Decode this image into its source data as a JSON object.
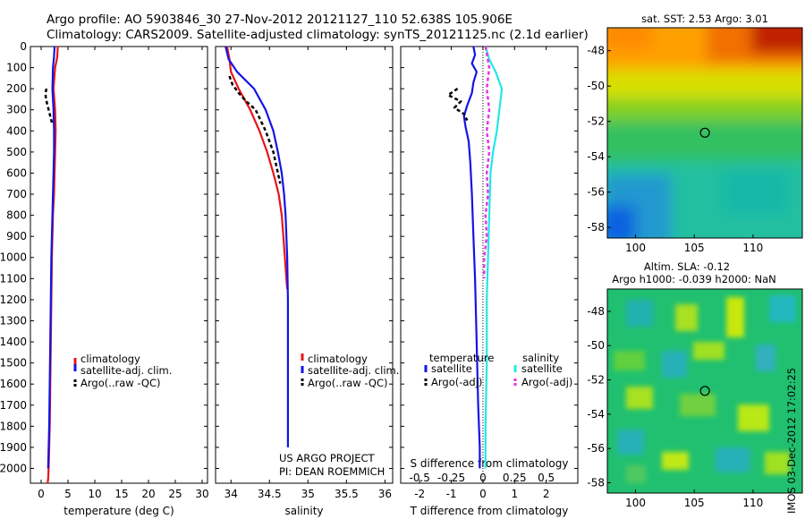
{
  "header": {
    "title_line1": "Argo profile: AO 5903846_30 27-Nov-2012 20121127_110 52.638S 105.906E",
    "title_line2": "Climatology: CARS2009. Satellite-adjusted climatology: synTS_20121125.nc (2.1d earlier)"
  },
  "colors": {
    "climatology": "#e8141a",
    "satellite": "#1414e6",
    "argo": "#000000",
    "satellite_salinity": "#20e8e8",
    "argo_salinity": "#e830e8"
  },
  "chart_data": [
    {
      "type": "line",
      "id": "temperature",
      "xlabel": "temperature (deg C)",
      "ylabel": "",
      "xlim": [
        -2,
        31
      ],
      "ylim": [
        2070,
        0
      ],
      "xticks": [
        "0",
        "5",
        "10",
        "15",
        "20",
        "25",
        "30"
      ],
      "xtick_values": [
        0,
        5,
        10,
        15,
        20,
        25,
        30
      ],
      "yticks": [
        "0",
        "100",
        "200",
        "300",
        "400",
        "500",
        "600",
        "700",
        "800",
        "900",
        "1000",
        "1100",
        "1200",
        "1300",
        "1400",
        "1500",
        "1600",
        "1700",
        "1800",
        "1900",
        "2000"
      ],
      "ytick_values": [
        0,
        100,
        200,
        300,
        400,
        500,
        600,
        700,
        800,
        900,
        1000,
        1100,
        1200,
        1300,
        1400,
        1500,
        1600,
        1700,
        1800,
        1900,
        2000
      ],
      "legend": [
        "climatology",
        "satellite-adj. clim.",
        "Argo(..raw -QC)"
      ],
      "legend_position": "lower-right",
      "series": [
        {
          "name": "climatology",
          "color": "#e8141a",
          "dash": false,
          "x": [
            3.1,
            3.0,
            2.6,
            2.3,
            2.6,
            2.7,
            2.6,
            2.5,
            2.4,
            2.2,
            2.1,
            2.0,
            1.9,
            1.8,
            1.7,
            1.6,
            1.4,
            1.3,
            1.2
          ],
          "y": [
            0,
            50,
            100,
            200,
            300,
            400,
            500,
            600,
            700,
            800,
            900,
            1000,
            1200,
            1400,
            1600,
            1800,
            2000,
            2050,
            2070
          ]
        },
        {
          "name": "satellite-adj. clim.",
          "color": "#1414e6",
          "dash": false,
          "x": [
            2.5,
            2.4,
            2.2,
            2.1,
            2.3,
            2.4,
            2.4,
            2.3,
            2.2,
            2.1,
            2.0,
            1.9,
            1.8,
            1.7,
            1.6,
            1.5,
            1.3
          ],
          "y": [
            0,
            50,
            100,
            200,
            300,
            400,
            500,
            600,
            700,
            800,
            900,
            1000,
            1200,
            1400,
            1600,
            1800,
            2000
          ]
        },
        {
          "name": "Argo(..raw -QC)",
          "color": "#000000",
          "dash": true,
          "x": [
            1.0,
            0.8,
            0.9,
            1.2,
            1.4,
            1.7,
            2.0
          ],
          "y": [
            200,
            220,
            250,
            280,
            300,
            330,
            360
          ]
        }
      ]
    },
    {
      "type": "line",
      "id": "salinity",
      "xlabel": "salinity",
      "xlim": [
        33.8,
        36.1
      ],
      "ylim": [
        2070,
        0
      ],
      "xticks": [
        "34",
        "34.5",
        "35",
        "35.5",
        "36"
      ],
      "xtick_values": [
        34,
        34.5,
        35,
        35.5,
        36
      ],
      "legend": [
        "climatology",
        "satellite-adj. clim.",
        "Argo(..raw -QC)"
      ],
      "legend_position": "lower-right",
      "annotation": [
        "US ARGO PROJECT",
        "PI: DEAN ROEMMICH"
      ],
      "series": [
        {
          "name": "climatology",
          "color": "#e8141a",
          "dash": false,
          "x": [
            33.95,
            33.98,
            34.0,
            34.1,
            34.25,
            34.37,
            34.47,
            34.55,
            34.62,
            34.66,
            34.68,
            34.7,
            34.72,
            34.73,
            34.73
          ],
          "y": [
            0,
            60,
            120,
            200,
            300,
            400,
            500,
            600,
            700,
            800,
            900,
            1000,
            1100,
            1150,
            1150
          ]
        },
        {
          "name": "satellite-adj. clim.",
          "color": "#1414e6",
          "dash": false,
          "x": [
            33.93,
            33.97,
            34.08,
            34.3,
            34.45,
            34.55,
            34.61,
            34.66,
            34.69,
            34.71,
            34.72,
            34.73,
            34.74,
            34.74,
            34.74,
            34.74
          ],
          "y": [
            0,
            60,
            120,
            200,
            300,
            400,
            500,
            600,
            700,
            800,
            900,
            1000,
            1200,
            1400,
            1600,
            1900
          ]
        },
        {
          "name": "Argo(..raw -QC)",
          "color": "#000000",
          "dash": true,
          "x": [
            33.98,
            34.02,
            34.1,
            34.2,
            34.32,
            34.45,
            34.55,
            34.64
          ],
          "y": [
            140,
            180,
            220,
            260,
            300,
            400,
            500,
            650
          ]
        }
      ]
    },
    {
      "type": "line",
      "id": "difference",
      "xlabel": "T difference from climatology",
      "xlabel_top": "S difference from climatology",
      "xlim": [
        -2.6,
        3.0
      ],
      "ylim": [
        2070,
        0
      ],
      "xticks": [
        "-2",
        "-1",
        "0",
        "1",
        "2"
      ],
      "xtick_values": [
        -2,
        -1,
        0,
        1,
        2
      ],
      "xticks_top": [
        "-0.5",
        "-0.25",
        "0",
        "0.25",
        "0.5"
      ],
      "xtick_top_values": [
        -0.5,
        -0.25,
        0,
        0.25,
        0.5
      ],
      "legend_groups": [
        {
          "heading": "temperature",
          "items": [
            "satellite",
            "Argo(-adj)"
          ]
        },
        {
          "heading": "salinity",
          "items": [
            "satellite",
            "Argo(-adj)"
          ]
        }
      ],
      "series": [
        {
          "name": "satellite",
          "quantity": "temperature",
          "color": "#1414e6",
          "dash": false,
          "x": [
            -0.3,
            -0.25,
            -0.35,
            -0.2,
            -0.3,
            -0.35,
            -0.5,
            -0.6,
            -0.55,
            -0.45,
            -0.4,
            -0.35,
            -0.3,
            -0.25,
            -0.2,
            -0.15,
            -0.1,
            -0.1
          ],
          "y": [
            0,
            40,
            80,
            120,
            170,
            220,
            280,
            330,
            380,
            450,
            550,
            700,
            900,
            1100,
            1400,
            1700,
            1900,
            2000
          ]
        },
        {
          "name": "Argo(-adj)",
          "quantity": "temperature",
          "color": "#000000",
          "dash": true,
          "x": [
            -0.8,
            -1.1,
            -0.7,
            -0.9,
            -0.6,
            -0.5
          ],
          "y": [
            200,
            230,
            260,
            290,
            320,
            350
          ]
        },
        {
          "name": "satellite",
          "quantity": "salinity",
          "color": "#20e8e8",
          "dash": false,
          "x": [
            0.02,
            0.05,
            0.1,
            0.15,
            0.13,
            0.11,
            0.08,
            0.06,
            0.05,
            0.04,
            0.03,
            0.03,
            0.02,
            0.02
          ],
          "y": [
            0,
            60,
            120,
            200,
            300,
            400,
            500,
            600,
            800,
            1000,
            1200,
            1500,
            1800,
            2000
          ]
        },
        {
          "name": "Argo(-adj)",
          "quantity": "salinity",
          "color": "#e830e8",
          "dash": true,
          "x": [
            0.02,
            0.05,
            0.03,
            0.05,
            0.03,
            0.05,
            0.03,
            0.04,
            0.02,
            0.03,
            0.01,
            0.01
          ],
          "y": [
            0,
            100,
            200,
            300,
            400,
            500,
            600,
            700,
            800,
            900,
            1000,
            1100
          ]
        }
      ]
    },
    {
      "type": "heatmap",
      "id": "sst-map",
      "title": "sat. SST: 2.53 Argo: 3.01",
      "xticks": [
        "100",
        "105",
        "110"
      ],
      "xtick_values": [
        100,
        105,
        110
      ],
      "yticks": [
        "-48",
        "-50",
        "-52",
        "-54",
        "-56",
        "-58"
      ],
      "ytick_values": [
        -48,
        -50,
        -52,
        -54,
        -56,
        -58
      ],
      "xlim": [
        97.6,
        114.2
      ],
      "ylim": [
        -58.6,
        -46.7
      ],
      "marker": {
        "lon": 105.906,
        "lat": -52.638
      }
    },
    {
      "type": "heatmap",
      "id": "sla-map",
      "title_line1": "Altim. SLA: -0.12",
      "title_line2": "Argo h1000: -0.039 h2000: NaN",
      "xticks": [
        "100",
        "105",
        "110"
      ],
      "xtick_values": [
        100,
        105,
        110
      ],
      "yticks": [
        "-48",
        "-50",
        "-52",
        "-54",
        "-56",
        "-58"
      ],
      "ytick_values": [
        -48,
        -50,
        -52,
        -54,
        -56,
        -58
      ],
      "xlim": [
        97.6,
        114.2
      ],
      "ylim": [
        -58.6,
        -46.7
      ],
      "marker": {
        "lon": 105.906,
        "lat": -52.638
      }
    }
  ],
  "footer": {
    "timestamp": "IMOS 03-Dec-2012 17:02:25"
  }
}
